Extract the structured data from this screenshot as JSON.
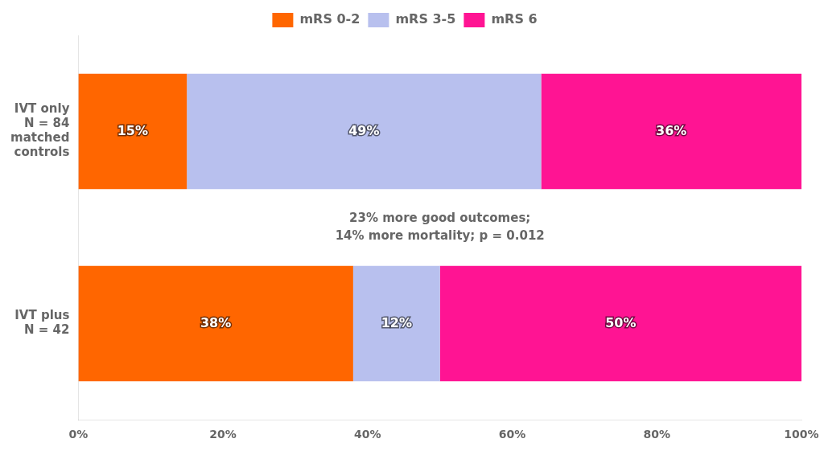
{
  "chart_data": {
    "type": "bar",
    "orientation": "horizontal",
    "stacked": true,
    "categories": [
      "IVT only\nN = 84\nmatched\ncontrols",
      "IVT plus\nN = 42"
    ],
    "series": [
      {
        "name": "mRS 0-2",
        "color": "#ff6600",
        "values": [
          15,
          38
        ],
        "value_labels": [
          "15%",
          "38%"
        ]
      },
      {
        "name": "mRS 3-5",
        "color": "#b8c0ee",
        "values": [
          49,
          12
        ],
        "value_labels": [
          "49%",
          "12%"
        ]
      },
      {
        "name": "mRS 6",
        "color": "#ff1493",
        "values": [
          36,
          50
        ],
        "value_labels": [
          "36%",
          "50%"
        ]
      }
    ],
    "xlim": [
      0,
      100
    ],
    "xticks": [
      {
        "value": 0,
        "label": "0%"
      },
      {
        "value": 20,
        "label": "20%"
      },
      {
        "value": 40,
        "label": "40%"
      },
      {
        "value": 60,
        "label": "60%"
      },
      {
        "value": 80,
        "label": "80%"
      },
      {
        "value": 100,
        "label": "100%"
      }
    ],
    "annotation": "23% more good outcomes;\n14% more mortality; p = 0.012",
    "data_labels": true,
    "grid": false,
    "legend": "top"
  }
}
